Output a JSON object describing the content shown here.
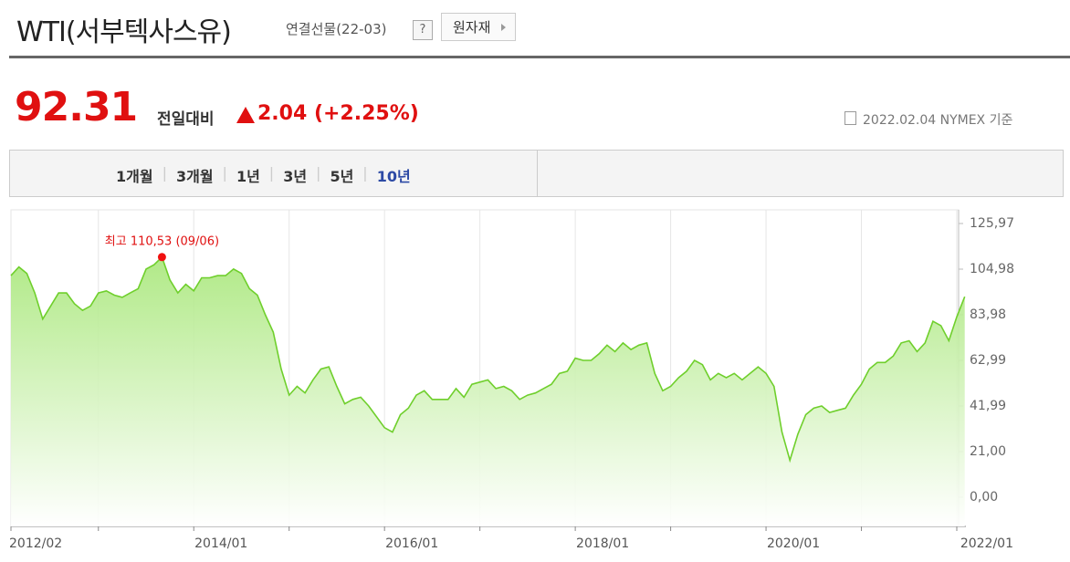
{
  "header": {
    "title": "WTI(서부텍사스유)",
    "subtitle": "연결선물(22-03)",
    "help": "?",
    "category_button": "원자재"
  },
  "quote": {
    "price": "92.31",
    "change_label": "전일대비",
    "change": "2.04 (+2.25%)",
    "date": "2022.02.04 NYMEX 기준"
  },
  "tabs": [
    "1개월",
    "3개월",
    "1년",
    "3년",
    "5년",
    "10년"
  ],
  "selected_tab": "10년",
  "chart_data": {
    "type": "area",
    "color": "#6fcf2c",
    "x": [
      "2012/02",
      "2012/03",
      "2012/04",
      "2012/05",
      "2012/06",
      "2012/07",
      "2012/08",
      "2012/09",
      "2012/10",
      "2012/11",
      "2012/12",
      "2013/01",
      "2013/02",
      "2013/03",
      "2013/04",
      "2013/05",
      "2013/06",
      "2013/07",
      "2013/08",
      "2013/09",
      "2013/10",
      "2013/11",
      "2013/12",
      "2014/01",
      "2014/02",
      "2014/03",
      "2014/04",
      "2014/05",
      "2014/06",
      "2014/07",
      "2014/08",
      "2014/09",
      "2014/10",
      "2014/11",
      "2014/12",
      "2015/01",
      "2015/02",
      "2015/03",
      "2015/04",
      "2015/05",
      "2015/06",
      "2015/07",
      "2015/08",
      "2015/09",
      "2015/10",
      "2015/11",
      "2015/12",
      "2016/01",
      "2016/02",
      "2016/03",
      "2016/04",
      "2016/05",
      "2016/06",
      "2016/07",
      "2016/08",
      "2016/09",
      "2016/10",
      "2016/11",
      "2016/12",
      "2017/01",
      "2017/02",
      "2017/03",
      "2017/04",
      "2017/05",
      "2017/06",
      "2017/07",
      "2017/08",
      "2017/09",
      "2017/10",
      "2017/11",
      "2017/12",
      "2018/01",
      "2018/02",
      "2018/03",
      "2018/04",
      "2018/05",
      "2018/06",
      "2018/07",
      "2018/08",
      "2018/09",
      "2018/10",
      "2018/11",
      "2018/12",
      "2019/01",
      "2019/02",
      "2019/03",
      "2019/04",
      "2019/05",
      "2019/06",
      "2019/07",
      "2019/08",
      "2019/09",
      "2019/10",
      "2019/11",
      "2019/12",
      "2020/01",
      "2020/02",
      "2020/03",
      "2020/04",
      "2020/05",
      "2020/06",
      "2020/07",
      "2020/08",
      "2020/09",
      "2020/10",
      "2020/11",
      "2020/12",
      "2021/01",
      "2021/02",
      "2021/03",
      "2021/04",
      "2021/05",
      "2021/06",
      "2021/07",
      "2021/08",
      "2021/09",
      "2021/10",
      "2021/11",
      "2021/12",
      "2022/01",
      "2022/02"
    ],
    "values": [
      102,
      106,
      103,
      94,
      82,
      88,
      94,
      94,
      89,
      86,
      88,
      94,
      95,
      93,
      92,
      94,
      96,
      105,
      107,
      110.53,
      100,
      94,
      98,
      95,
      101,
      101,
      102,
      102,
      105,
      103,
      96,
      93,
      84,
      76,
      59,
      47,
      51,
      48,
      54,
      59,
      60,
      51,
      43,
      45,
      46,
      42,
      37,
      32,
      30,
      38,
      41,
      47,
      49,
      45,
      45,
      45,
      50,
      46,
      52,
      53,
      54,
      50,
      51,
      49,
      45,
      47,
      48,
      50,
      52,
      57,
      58,
      64,
      63,
      63,
      66,
      70,
      67,
      71,
      68,
      70,
      71,
      57,
      49,
      51,
      55,
      58,
      63,
      61,
      54,
      57,
      55,
      57,
      54,
      57,
      60,
      57,
      51,
      30,
      17,
      29,
      38,
      41,
      42,
      39,
      40,
      41,
      47,
      52,
      59,
      62,
      62,
      65,
      71,
      72,
      67,
      71,
      81,
      79,
      72,
      83,
      92.31
    ],
    "ylim": [
      -13.44,
      132.27
    ],
    "yticks": [
      {
        "value": 0,
        "label": "0,00"
      },
      {
        "value": 21.0,
        "label": "21,00"
      },
      {
        "value": 41.99,
        "label": "41,99"
      },
      {
        "value": 62.99,
        "label": "62,99"
      },
      {
        "value": 83.98,
        "label": "83,98"
      },
      {
        "value": 104.98,
        "label": "104,98"
      },
      {
        "value": 125.97,
        "label": "125,97"
      }
    ],
    "xticks": [
      "2012/02",
      "2014/01",
      "2016/01",
      "2018/01",
      "2020/01",
      "2022/01"
    ],
    "annotation": {
      "text": "최고 110,53 (09/06)",
      "x": "2013/09",
      "value": 110.53
    }
  }
}
